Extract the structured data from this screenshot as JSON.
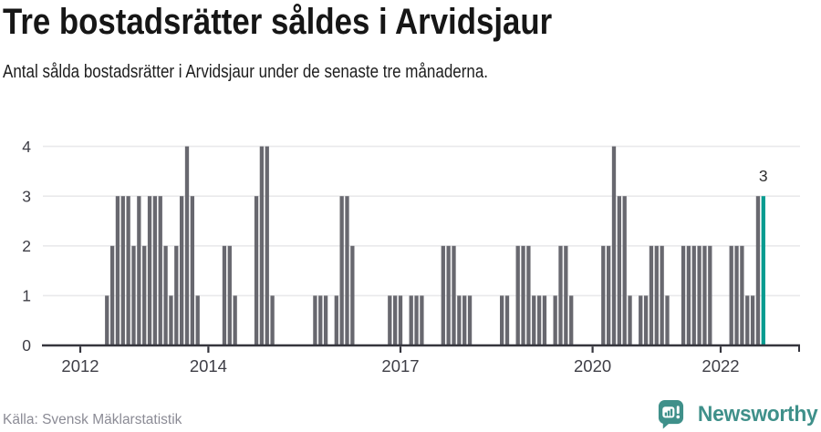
{
  "header": {
    "title": "Tre bostadsrätter såldes i Arvidsjaur",
    "subtitle": "Antal sålda bostadsrätter i Arvidsjaur under de senaste tre månaderna."
  },
  "footer": {
    "source_label": "Källa: Svensk Mäklarstatistik",
    "brand": "Newsworthy"
  },
  "chart_data": {
    "type": "bar",
    "title": "Tre bostadsrätter såldes i Arvidsjaur",
    "xlabel": "",
    "ylabel": "",
    "start_month": "2012-01",
    "end_month": "2022-09",
    "values": [
      0,
      0,
      0,
      0,
      0,
      1,
      2,
      3,
      3,
      3,
      2,
      3,
      2,
      3,
      3,
      3,
      2,
      1,
      2,
      3,
      4,
      3,
      1,
      0,
      0,
      0,
      0,
      2,
      2,
      1,
      0,
      0,
      0,
      3,
      4,
      4,
      1,
      0,
      0,
      0,
      0,
      0,
      0,
      0,
      1,
      1,
      1,
      0,
      1,
      3,
      3,
      2,
      0,
      0,
      0,
      0,
      0,
      0,
      1,
      1,
      1,
      0,
      1,
      1,
      1,
      0,
      0,
      0,
      2,
      2,
      2,
      1,
      1,
      1,
      0,
      0,
      0,
      0,
      0,
      1,
      1,
      0,
      2,
      2,
      2,
      1,
      1,
      1,
      0,
      1,
      2,
      2,
      1,
      0,
      0,
      0,
      0,
      0,
      2,
      2,
      4,
      3,
      3,
      1,
      0,
      1,
      1,
      2,
      2,
      2,
      1,
      0,
      0,
      2,
      2,
      2,
      2,
      2,
      2,
      0,
      0,
      0,
      2,
      2,
      2,
      1,
      1,
      3,
      3
    ],
    "ylim": [
      0,
      4
    ],
    "y_ticks": [
      0,
      1,
      2,
      3,
      4
    ],
    "x_tick_labels": [
      "2012",
      "2014",
      "2017",
      "2020",
      "2022"
    ],
    "grid": true,
    "legend": "none",
    "highlight_index": 128,
    "last_value_label": "3",
    "colors": {
      "bar": "#68686f",
      "highlight": "#089b90",
      "grid": "#e9e9eb",
      "axis": "#35353d",
      "tick_label": "#3e3e46",
      "value_label": "#2f2f2f"
    }
  }
}
